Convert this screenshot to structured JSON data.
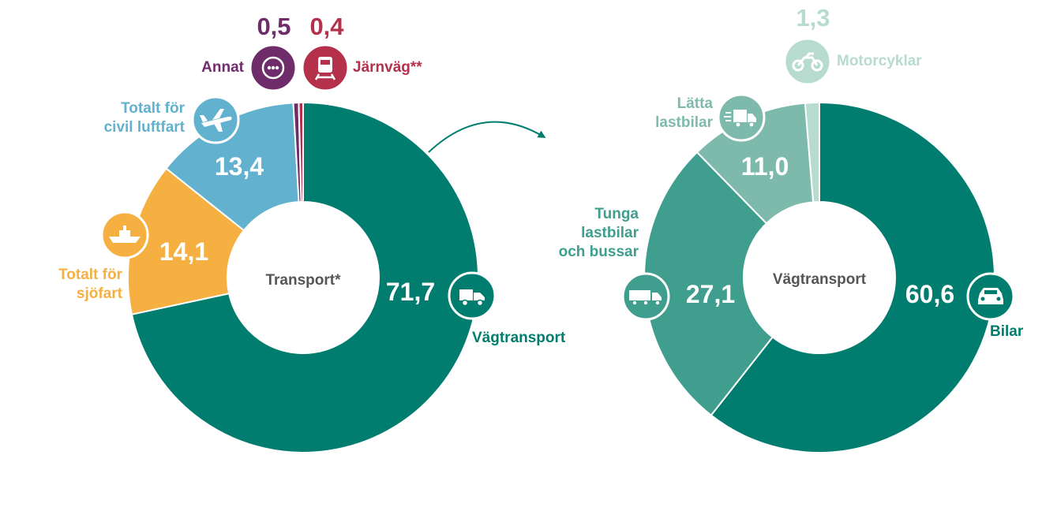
{
  "chart_data": [
    {
      "type": "pie",
      "variant": "donut",
      "center_label": "Transport*",
      "slices": [
        {
          "label": "Vägtransport",
          "value": 71.7,
          "value_text": "71,7",
          "color": "#007D6E",
          "icon": "truck-icon"
        },
        {
          "label": "Totalt för sjöfart",
          "value": 14.1,
          "value_text": "14,1",
          "color": "#F5B041",
          "icon": "ship-icon"
        },
        {
          "label": "Totalt för civil luftfart",
          "value": 13.4,
          "value_text": "13,4",
          "color": "#62B2CF",
          "icon": "airplane-icon"
        },
        {
          "label": "Annat",
          "value": 0.5,
          "value_text": "0,5",
          "color": "#6F2C6B",
          "icon": "more-icon"
        },
        {
          "label": "Järnväg**",
          "value": 0.4,
          "value_text": "0,4",
          "color": "#B4304B",
          "icon": "train-icon"
        }
      ]
    },
    {
      "type": "pie",
      "variant": "donut",
      "center_label": "Vägtransport",
      "slices": [
        {
          "label": "Bilar",
          "value": 60.6,
          "value_text": "60,6",
          "color": "#007D6E",
          "icon": "car-icon"
        },
        {
          "label": "Tunga lastbilar och bussar",
          "value": 27.1,
          "value_text": "27,1",
          "color": "#3F9E8E",
          "icon": "semi-truck-icon"
        },
        {
          "label": "Lätta lastbilar",
          "value": 11.0,
          "value_text": "11,0",
          "color": "#7DBAAB",
          "icon": "van-icon"
        },
        {
          "label": "Motorcyklar",
          "value": 1.3,
          "value_text": "1,3",
          "color": "#B7DCCF",
          "icon": "motorcycle-icon"
        }
      ]
    }
  ],
  "labels": {
    "vagtransport": "Vägtransport",
    "sjofart_1": "Totalt för",
    "sjofart_2": "sjöfart",
    "luftfart_1": "Totalt för",
    "luftfart_2": "civil luftfart",
    "annat": "Annat",
    "jarnvag": "Järnväg**",
    "bilar": "Bilar",
    "tunga_1": "Tunga",
    "tunga_2": "lastbilar",
    "tunga_3": "och bussar",
    "latta_1": "Lätta",
    "latta_2": "lastbilar",
    "motorcyklar": "Motorcyklar"
  }
}
